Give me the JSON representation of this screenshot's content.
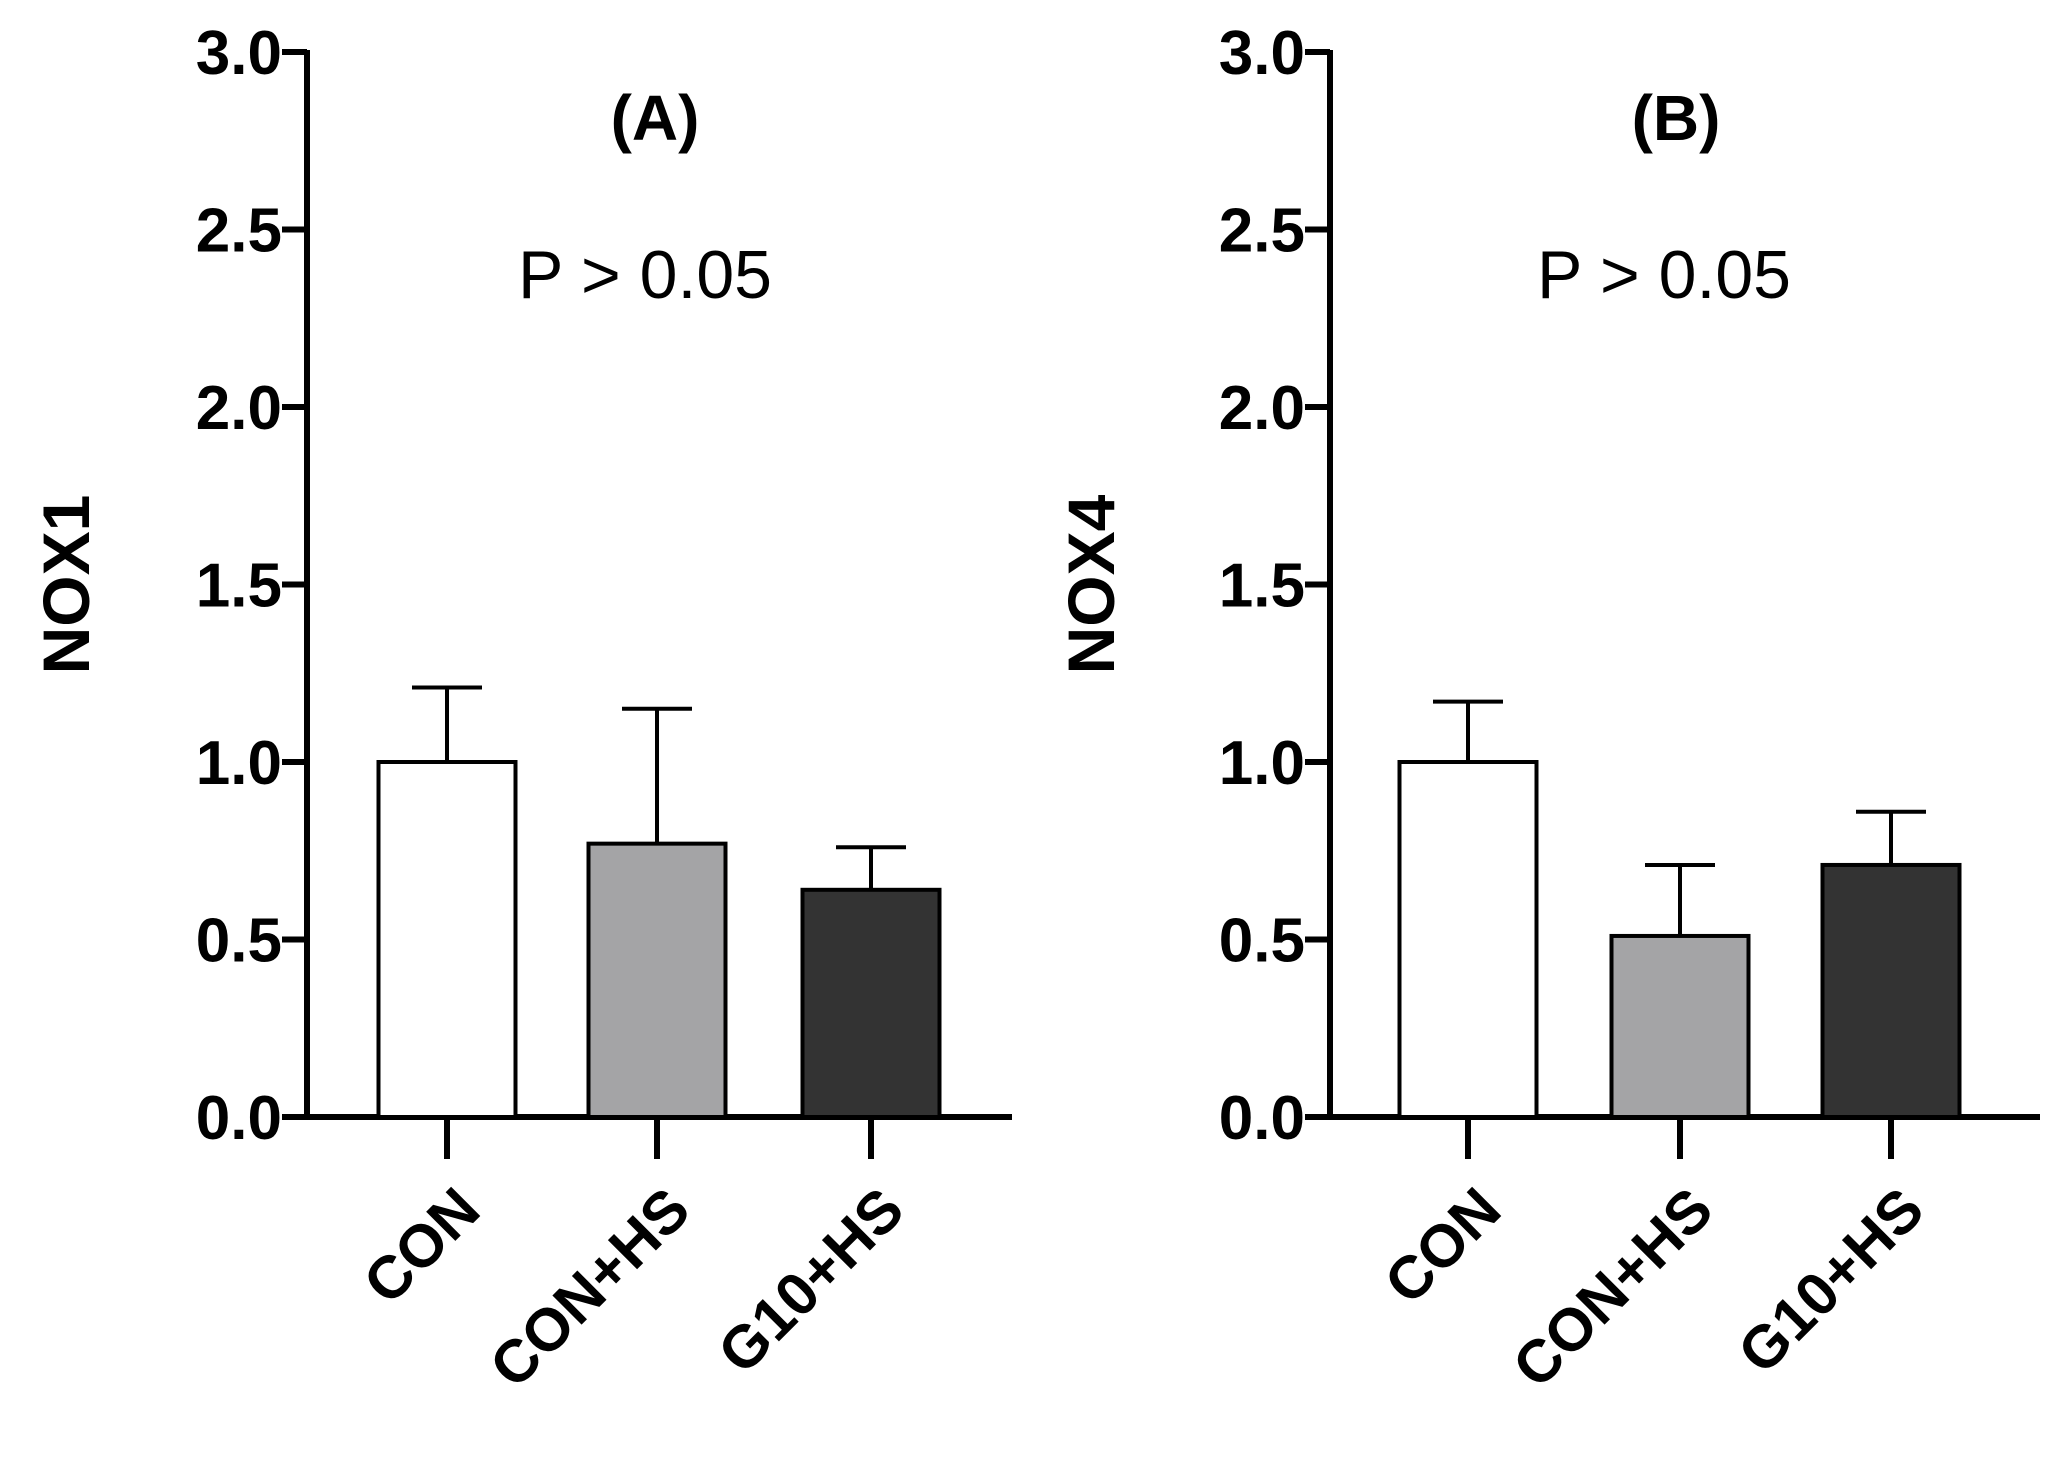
{
  "colors": {
    "axis": "#000000",
    "bar_outline": "#000000"
  },
  "chart_data": [
    {
      "type": "bar",
      "title": "(A)",
      "annotation": "P > 0.05",
      "ylabel": "NOX1",
      "xlabel": "",
      "ylim": [
        0,
        3.0
      ],
      "yticks": [
        0.0,
        0.5,
        1.0,
        1.5,
        2.0,
        2.5,
        3.0
      ],
      "ytick_labels": [
        "0.0",
        "0.5",
        "1.0",
        "1.5",
        "2.0",
        "2.5",
        "3.0"
      ],
      "categories": [
        "CON",
        "CON+HS",
        "G10+HS"
      ],
      "values": [
        1.0,
        0.77,
        0.64
      ],
      "errors": [
        0.21,
        0.38,
        0.12
      ],
      "fill_colors": [
        "#ffffff",
        "#a4a4a6",
        "#333333"
      ]
    },
    {
      "type": "bar",
      "title": "(B)",
      "annotation": "P > 0.05",
      "ylabel": "NOX4",
      "xlabel": "",
      "ylim": [
        0,
        3.0
      ],
      "yticks": [
        0.0,
        0.5,
        1.0,
        1.5,
        2.0,
        2.5,
        3.0
      ],
      "ytick_labels": [
        "0.0",
        "0.5",
        "1.0",
        "1.5",
        "2.0",
        "2.5",
        "3.0"
      ],
      "categories": [
        "CON",
        "CON+HS",
        "G10+HS"
      ],
      "values": [
        1.0,
        0.51,
        0.71
      ],
      "errors": [
        0.17,
        0.2,
        0.15
      ],
      "fill_colors": [
        "#ffffff",
        "#a4a4a6",
        "#333333"
      ]
    }
  ]
}
